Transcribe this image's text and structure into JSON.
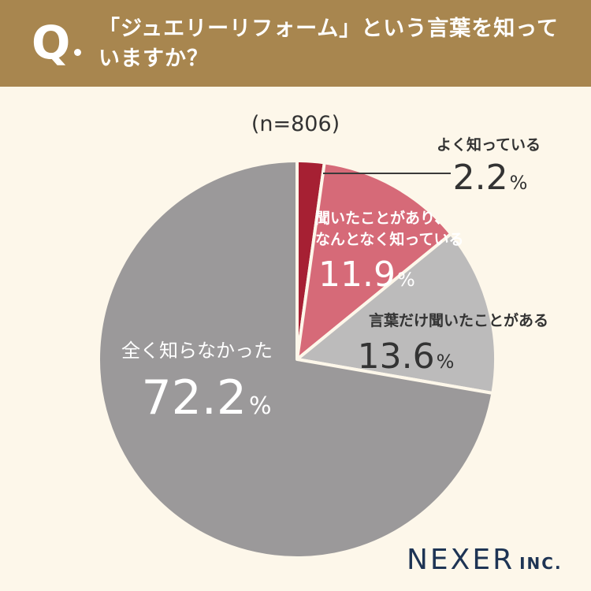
{
  "question": {
    "mark": "Q",
    "text": "「ジュエリーリフォーム」という言葉を知っていますか？"
  },
  "colors": {
    "header": "#a8864f",
    "background": "#fdf7ea",
    "logo": "#1e3454"
  },
  "chart_data": {
    "type": "pie",
    "title": "(n=806)",
    "unit": "%",
    "start": "12 o'clock, clockwise",
    "slices": [
      {
        "label": "よく知っている",
        "value": 2.2,
        "value_text": "2.2",
        "color": "#a62033"
      },
      {
        "label": "聞いたことがあり、なんとなく知っている",
        "label_lines": [
          "聞いたことがあり、",
          "なんとなく知っている"
        ],
        "value": 11.9,
        "value_text": "11.9",
        "color": "#d66a78"
      },
      {
        "label": "言葉だけ聞いたことがある",
        "value": 13.6,
        "value_text": "13.6",
        "color": "#bcbbbb"
      },
      {
        "label": "全く知らなかった",
        "value": 72.2,
        "value_text": "72.2",
        "color": "#9b999a"
      }
    ]
  },
  "logo": {
    "main": "NEXER",
    "sub": "INC."
  }
}
